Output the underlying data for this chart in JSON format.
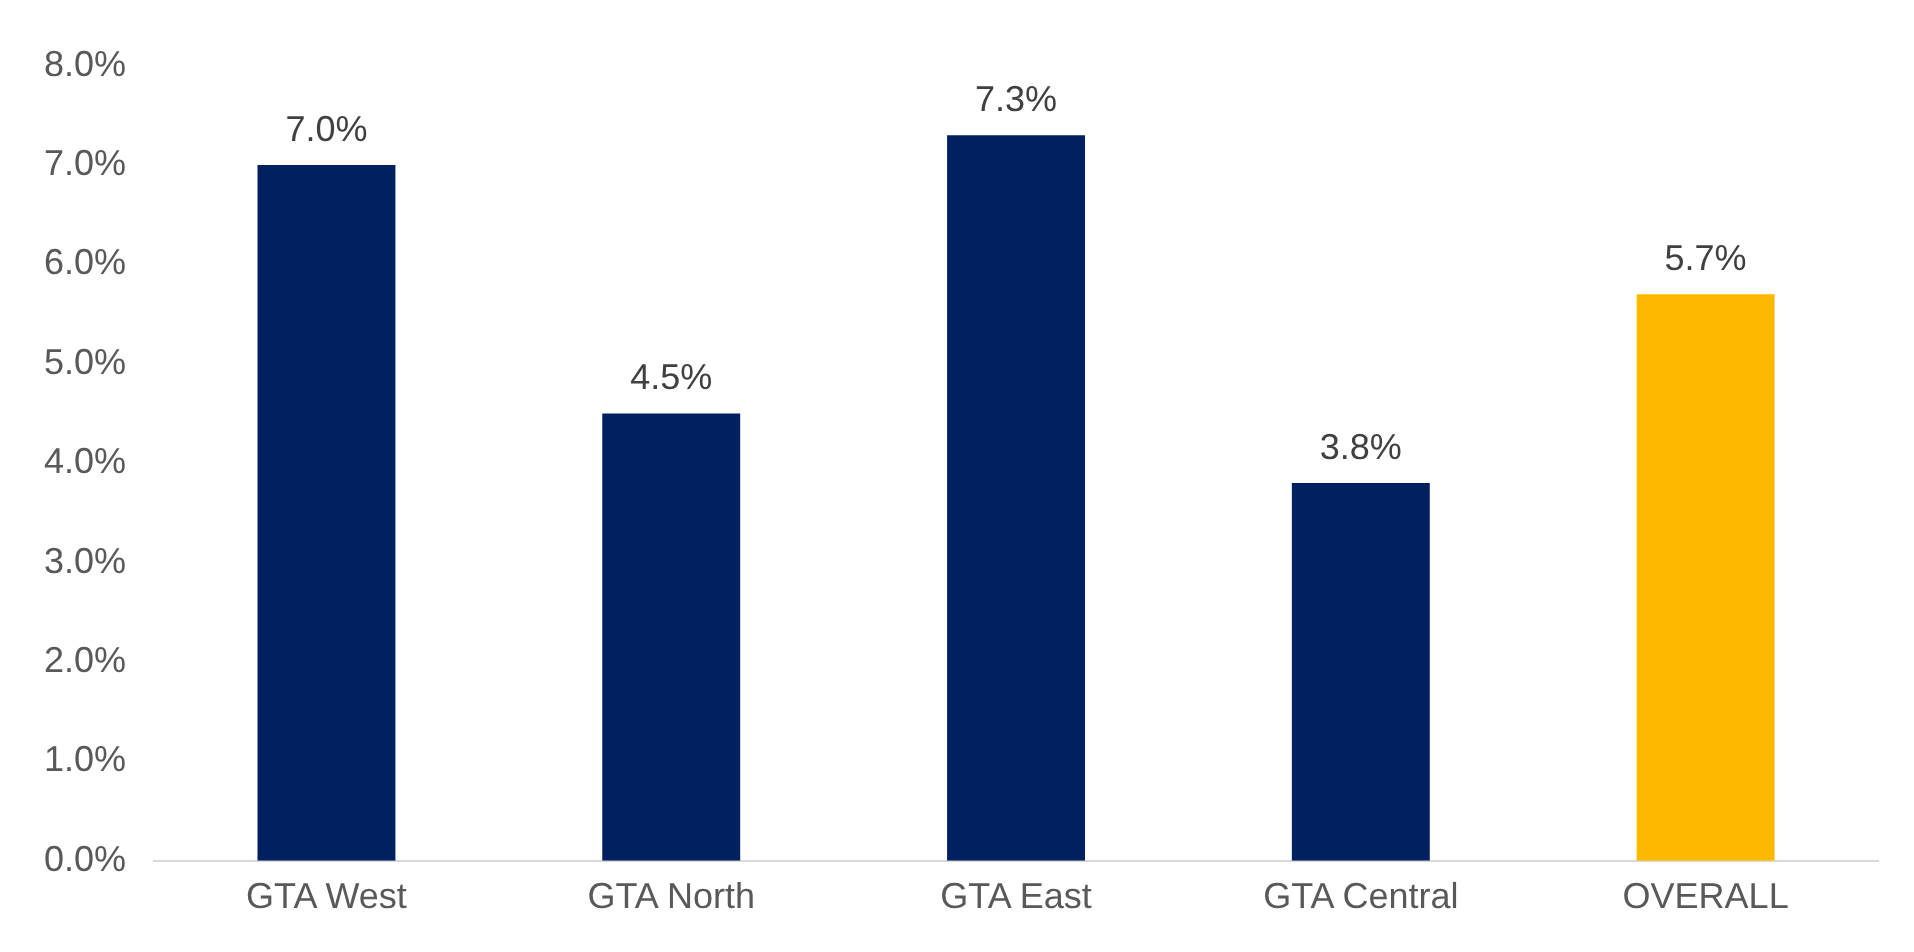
{
  "chart_data": {
    "type": "bar",
    "categories": [
      "GTA West",
      "GTA North",
      "GTA East",
      "GTA Central",
      "OVERALL"
    ],
    "values": [
      7.0,
      4.5,
      7.3,
      3.8,
      5.7
    ],
    "colors": [
      "#002060",
      "#002060",
      "#002060",
      "#002060",
      "#ffb800"
    ],
    "value_labels": [
      "7.0%",
      "4.5%",
      "7.3%",
      "3.8%",
      "5.7%"
    ],
    "ylim": [
      0,
      8
    ],
    "yticks": [
      {
        "value": 0,
        "label": "0.0%"
      },
      {
        "value": 1,
        "label": "1.0%"
      },
      {
        "value": 2,
        "label": "2.0%"
      },
      {
        "value": 3,
        "label": "3.0%"
      },
      {
        "value": 4,
        "label": "4.0%"
      },
      {
        "value": 5,
        "label": "5.0%"
      },
      {
        "value": 6,
        "label": "6.0%"
      },
      {
        "value": 7,
        "label": "7.0%"
      },
      {
        "value": 8,
        "label": "8.0%"
      }
    ]
  }
}
